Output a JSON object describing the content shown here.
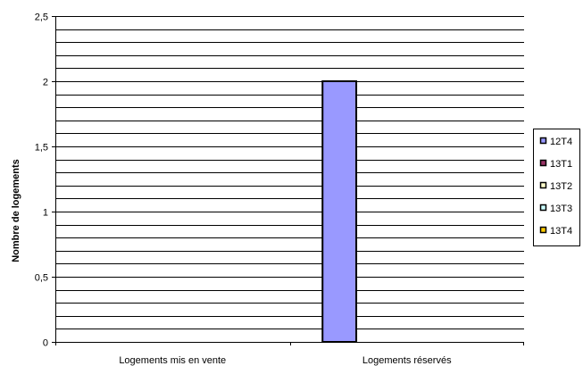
{
  "chart_data": {
    "type": "bar",
    "title": "",
    "xlabel": "",
    "ylabel": "Nombre de logements",
    "categories": [
      "Logements mis en vente",
      "Logements réservés"
    ],
    "ylim": [
      0,
      2.5
    ],
    "yticks": [
      "0",
      "0,5",
      "1",
      "1,5",
      "2",
      "2,5"
    ],
    "grid": "horizontal",
    "legend_position": "right",
    "series": [
      {
        "name": "12T4",
        "color": "#9999ff",
        "values": [
          0,
          2
        ]
      },
      {
        "name": "13T1",
        "color": "#993366",
        "values": [
          0,
          0
        ]
      },
      {
        "name": "13T2",
        "color": "#ffffcc",
        "values": [
          0,
          0
        ]
      },
      {
        "name": "13T3",
        "color": "#ccffff",
        "values": [
          0,
          0
        ]
      },
      {
        "name": "13T4",
        "color": "#ffcc00",
        "values": [
          0,
          0
        ]
      }
    ]
  }
}
